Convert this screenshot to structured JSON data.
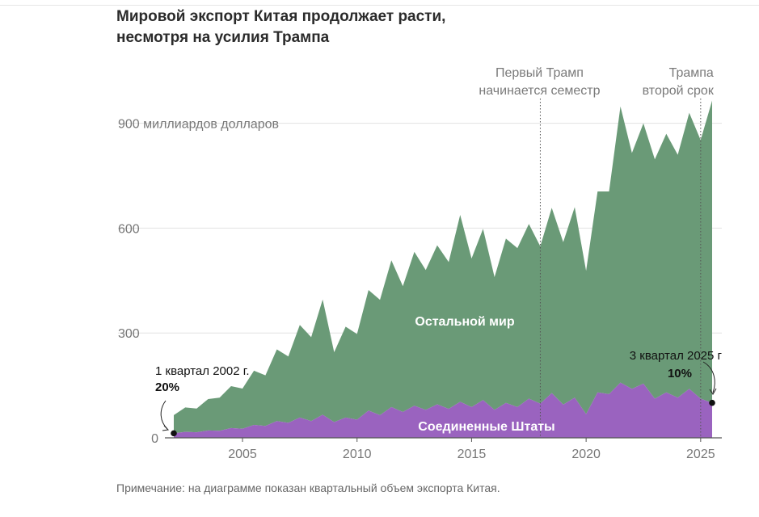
{
  "title": "Мировой экспорт Китая продолжает расти, несмотря на усилия Трампа",
  "note": "Примечание: на диаграмме показан квартальный объем экспорта Китая.",
  "colors": {
    "rest": "#6a9a77",
    "us": "#9a63bf",
    "grid": "#e2e2e2",
    "axis": "#555555"
  },
  "chart_data": {
    "type": "area",
    "stacked": true,
    "x_unit": "quarter",
    "y_ticks": [
      {
        "value": 0,
        "label": "0"
      },
      {
        "value": 300,
        "label": "300"
      },
      {
        "value": 600,
        "label": "600"
      },
      {
        "value": 900,
        "label": "900 миллиардов долларов"
      }
    ],
    "x_ticks": [
      {
        "value": 2005,
        "label": "2005"
      },
      {
        "value": 2010,
        "label": "2010"
      },
      {
        "value": 2015,
        "label": "2015"
      },
      {
        "value": 2020,
        "label": "2020"
      },
      {
        "value": 2025,
        "label": "2025"
      }
    ],
    "xlim": [
      "2002 Q1",
      "2025 Q3"
    ],
    "ylim": [
      0,
      980
    ],
    "series": [
      {
        "name": "Соединенные Штаты",
        "points": [
          [
            "2002 Q1",
            13
          ],
          [
            "2002 Q3",
            17
          ],
          [
            "2003 Q1",
            16
          ],
          [
            "2003 Q3",
            21
          ],
          [
            "2004 Q1",
            20
          ],
          [
            "2004 Q3",
            28
          ],
          [
            "2005 Q1",
            26
          ],
          [
            "2005 Q3",
            37
          ],
          [
            "2006 Q1",
            34
          ],
          [
            "2006 Q3",
            48
          ],
          [
            "2007 Q1",
            43
          ],
          [
            "2007 Q3",
            58
          ],
          [
            "2008 Q1",
            48
          ],
          [
            "2008 Q3",
            66
          ],
          [
            "2009 Q1",
            45
          ],
          [
            "2009 Q3",
            58
          ],
          [
            "2010 Q1",
            52
          ],
          [
            "2010 Q3",
            78
          ],
          [
            "2011 Q1",
            65
          ],
          [
            "2011 Q3",
            88
          ],
          [
            "2012 Q1",
            74
          ],
          [
            "2012 Q3",
            92
          ],
          [
            "2013 Q1",
            80
          ],
          [
            "2013 Q3",
            96
          ],
          [
            "2014 Q1",
            83
          ],
          [
            "2014 Q3",
            103
          ],
          [
            "2015 Q1",
            88
          ],
          [
            "2015 Q3",
            108
          ],
          [
            "2016 Q1",
            80
          ],
          [
            "2016 Q3",
            100
          ],
          [
            "2017 Q1",
            88
          ],
          [
            "2017 Q3",
            112
          ],
          [
            "2018 Q1",
            98
          ],
          [
            "2018 Q3",
            128
          ],
          [
            "2019 Q1",
            95
          ],
          [
            "2019 Q3",
            115
          ],
          [
            "2020 Q1",
            68
          ],
          [
            "2020 Q3",
            130
          ],
          [
            "2021 Q1",
            125
          ],
          [
            "2021 Q3",
            158
          ],
          [
            "2022 Q1",
            140
          ],
          [
            "2022 Q3",
            155
          ],
          [
            "2023 Q1",
            112
          ],
          [
            "2023 Q3",
            130
          ],
          [
            "2024 Q1",
            115
          ],
          [
            "2024 Q3",
            140
          ],
          [
            "2025 Q1",
            112
          ],
          [
            "2025 Q3",
            100
          ]
        ]
      },
      {
        "name": "Остальной мир",
        "points": [
          [
            "2002 Q1",
            52
          ],
          [
            "2002 Q3",
            70
          ],
          [
            "2003 Q1",
            68
          ],
          [
            "2003 Q3",
            90
          ],
          [
            "2004 Q1",
            95
          ],
          [
            "2004 Q3",
            120
          ],
          [
            "2005 Q1",
            115
          ],
          [
            "2005 Q3",
            155
          ],
          [
            "2006 Q1",
            145
          ],
          [
            "2006 Q3",
            205
          ],
          [
            "2007 Q1",
            190
          ],
          [
            "2007 Q3",
            265
          ],
          [
            "2008 Q1",
            240
          ],
          [
            "2008 Q3",
            330
          ],
          [
            "2009 Q1",
            200
          ],
          [
            "2009 Q3",
            260
          ],
          [
            "2010 Q1",
            245
          ],
          [
            "2010 Q3",
            345
          ],
          [
            "2011 Q1",
            330
          ],
          [
            "2011 Q3",
            420
          ],
          [
            "2012 Q1",
            360
          ],
          [
            "2012 Q3",
            440
          ],
          [
            "2013 Q1",
            400
          ],
          [
            "2013 Q3",
            455
          ],
          [
            "2014 Q1",
            420
          ],
          [
            "2014 Q3",
            535
          ],
          [
            "2015 Q1",
            425
          ],
          [
            "2015 Q3",
            490
          ],
          [
            "2016 Q1",
            380
          ],
          [
            "2016 Q3",
            470
          ],
          [
            "2017 Q1",
            455
          ],
          [
            "2017 Q3",
            500
          ],
          [
            "2018 Q1",
            450
          ],
          [
            "2018 Q3",
            530
          ],
          [
            "2019 Q1",
            465
          ],
          [
            "2019 Q3",
            545
          ],
          [
            "2020 Q1",
            410
          ],
          [
            "2020 Q3",
            575
          ],
          [
            "2021 Q1",
            580
          ],
          [
            "2021 Q3",
            790
          ],
          [
            "2022 Q1",
            675
          ],
          [
            "2022 Q3",
            745
          ],
          [
            "2023 Q1",
            685
          ],
          [
            "2023 Q3",
            740
          ],
          [
            "2024 Q1",
            695
          ],
          [
            "2024 Q3",
            790
          ],
          [
            "2025 Q1",
            740
          ],
          [
            "2025 Q3",
            865
          ]
        ]
      }
    ],
    "series_labels": {
      "us": "Соединенные Штаты",
      "rest": "Остальной мир"
    },
    "events": [
      {
        "x": "2018 Q1",
        "lines": [
          "Первый Трамп",
          "начинается семестр"
        ]
      },
      {
        "x": "2025 Q1",
        "lines": [
          "Трампа",
          "второй срок"
        ]
      }
    ],
    "callouts": [
      {
        "x": "2002 Q1",
        "text": "1 квартал 2002 г.",
        "value": "20%"
      },
      {
        "x": "2025 Q3",
        "text": "3 квартал 2025 г",
        "value": "10%"
      }
    ]
  }
}
